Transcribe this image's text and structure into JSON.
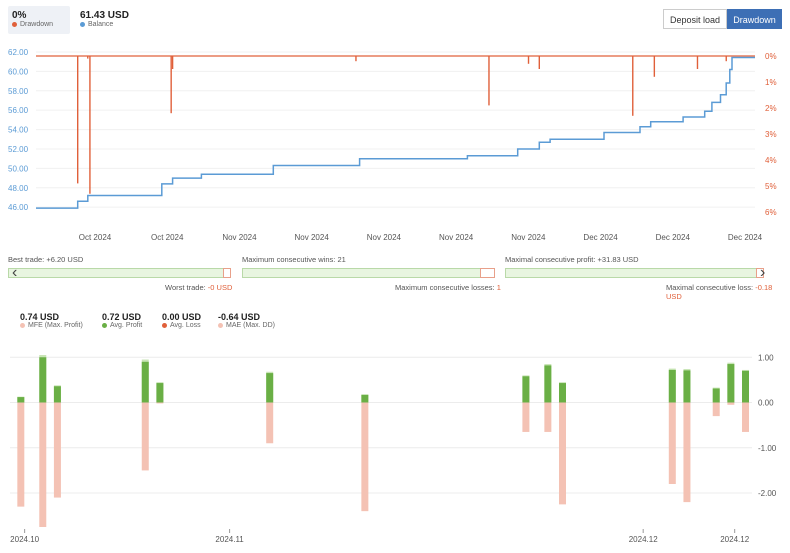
{
  "header": {
    "drawdown_value": "0%",
    "drawdown_label": "Drawdown",
    "balance_value": "61.43 USD",
    "balance_label": "Balance",
    "deposit_load_button": "Deposit load",
    "drawdown_button": "Drawdown"
  },
  "colors": {
    "drawdown": "#e0603a",
    "balance": "#5b9bd5",
    "profit": "#6aaf45",
    "loss_mae": "#f4c2b4",
    "accent": "#3d6fb5"
  },
  "chart_data": [
    {
      "type": "line",
      "y_left_ticks": [
        "62.00",
        "60.00",
        "58.00",
        "56.00",
        "54.00",
        "52.00",
        "50.00",
        "48.00",
        "46.00"
      ],
      "y_left_range": [
        45.5,
        62
      ],
      "y_right_ticks": [
        "0%",
        "1%",
        "2%",
        "3%",
        "4%",
        "5%",
        "6%"
      ],
      "y_right_range": [
        0,
        6
      ],
      "x_tick_labels": [
        "Oct 2024",
        "Oct 2024",
        "Nov 2024",
        "Nov 2024",
        "Nov 2024",
        "Nov 2024",
        "Nov 2024",
        "Dec 2024",
        "Dec 2024",
        "Dec 2024"
      ],
      "series": [
        {
          "name": "Balance",
          "x": [
            0,
            0.058,
            0.058,
            0.072,
            0.072,
            0.175,
            0.175,
            0.19,
            0.19,
            0.23,
            0.23,
            0.33,
            0.33,
            0.45,
            0.45,
            0.6,
            0.6,
            0.67,
            0.67,
            0.7,
            0.7,
            0.715,
            0.715,
            0.79,
            0.79,
            0.84,
            0.84,
            0.855,
            0.855,
            0.9,
            0.9,
            0.93,
            0.93,
            0.94,
            0.94,
            0.952,
            0.952,
            0.96,
            0.96,
            0.965,
            0.965,
            0.968,
            0.968,
            1.0
          ],
          "y": [
            45.9,
            45.9,
            46.6,
            46.6,
            47.2,
            47.2,
            48.4,
            48.4,
            49.0,
            49.0,
            49.4,
            49.4,
            50.3,
            50.3,
            51.0,
            51.0,
            51.3,
            51.3,
            52.0,
            52.0,
            52.7,
            52.7,
            53.0,
            53.0,
            53.7,
            53.7,
            54.3,
            54.3,
            54.8,
            54.8,
            55.3,
            55.3,
            55.9,
            55.9,
            56.8,
            56.8,
            57.6,
            57.6,
            58.8,
            58.8,
            60.2,
            60.2,
            61.43,
            61.43
          ]
        },
        {
          "name": "Drawdown",
          "spikes": [
            {
              "x": 0.058,
              "dd": 4.9
            },
            {
              "x": 0.075,
              "dd": 5.3
            },
            {
              "x": 0.072,
              "dd": 0.1
            },
            {
              "x": 0.188,
              "dd": 2.2
            },
            {
              "x": 0.19,
              "dd": 0.5
            },
            {
              "x": 0.445,
              "dd": 0.2
            },
            {
              "x": 0.63,
              "dd": 1.9
            },
            {
              "x": 0.685,
              "dd": 0.3
            },
            {
              "x": 0.7,
              "dd": 0.5
            },
            {
              "x": 0.83,
              "dd": 2.3
            },
            {
              "x": 0.86,
              "dd": 0.8
            },
            {
              "x": 0.92,
              "dd": 0.5
            },
            {
              "x": 0.96,
              "dd": 0.2
            }
          ]
        }
      ]
    },
    {
      "type": "bar",
      "y_ticks": [
        "1.00",
        "0.00",
        "-1.00",
        "-2.00"
      ],
      "y_tick_values": [
        1,
        0,
        -1,
        -2
      ],
      "ylim": [
        -2.75,
        1.05
      ],
      "x_labels": [
        "2024.10",
        "2024.11",
        "2024.12",
        "2024.12"
      ],
      "x_label_positions": [
        0.02,
        0.3,
        0.865,
        0.99
      ],
      "series": [
        {
          "name": "MFE (Max. Profit)",
          "values": [
            0.13,
            1.05,
            0.38,
            0.95,
            0.45,
            0.68,
            0.18,
            0.6,
            0.85,
            0.45,
            0.75,
            0.74,
            0.33,
            0.88,
            0.72
          ]
        },
        {
          "name": "Avg. Profit",
          "values": [
            0.12,
            1.0,
            0.36,
            0.9,
            0.43,
            0.65,
            0.17,
            0.58,
            0.82,
            0.43,
            0.72,
            0.71,
            0.31,
            0.85,
            0.7
          ]
        },
        {
          "name": "MAE (Max. DD)",
          "values": [
            -2.3,
            -2.75,
            -2.1,
            -1.5,
            -0.02,
            -0.9,
            -2.4,
            -0.65,
            -0.65,
            -2.25,
            -1.8,
            -2.2,
            -0.3,
            -0.05,
            -0.65
          ]
        }
      ],
      "bar_x": [
        0.01,
        0.04,
        0.06,
        0.18,
        0.2,
        0.35,
        0.48,
        0.7,
        0.73,
        0.75,
        0.9,
        0.92,
        0.96,
        0.98,
        1.0
      ]
    }
  ],
  "stats": {
    "best_trade": "Best trade: +6.20 USD",
    "worst_trade_label": "Worst trade: ",
    "worst_trade_value": "-0 USD",
    "max_consec_wins": "Maximum consecutive wins: 21",
    "max_consec_losses_label": "Maximum consecutive losses: ",
    "max_consec_losses_value": "1",
    "max_consec_profit": "Maximal consecutive profit: +31.83 USD",
    "max_consec_loss_label": "Maximal consecutive loss: ",
    "max_consec_loss_value": "-0.18 USD"
  },
  "metrics": [
    {
      "value": "0.74 USD",
      "label": "MFE (Max. Profit)",
      "color": "#f4c2b4"
    },
    {
      "value": "0.72 USD",
      "label": "Avg. Profit",
      "color": "#6aaf45"
    },
    {
      "value": "0.00 USD",
      "label": "Avg. Loss",
      "color": "#e0603a"
    },
    {
      "value": "-0.64 USD",
      "label": "MAE (Max. DD)",
      "color": "#f4c2b4"
    }
  ]
}
